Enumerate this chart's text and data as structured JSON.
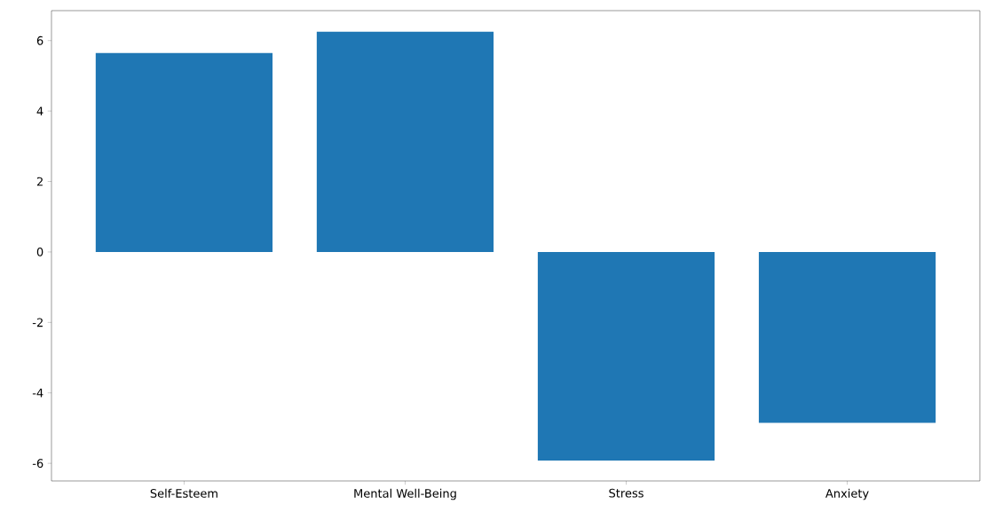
{
  "chart_data": {
    "type": "bar",
    "categories": [
      "Self-Esteem",
      "Mental Well-Being",
      "Stress",
      "Anxiety"
    ],
    "values": [
      5.65,
      6.25,
      -5.92,
      -4.85
    ],
    "color": "#1f77b4",
    "ylim": [
      -6.5,
      6.85
    ],
    "yticks": [
      -6,
      -4,
      -2,
      0,
      2,
      4,
      6
    ],
    "grid": false
  }
}
